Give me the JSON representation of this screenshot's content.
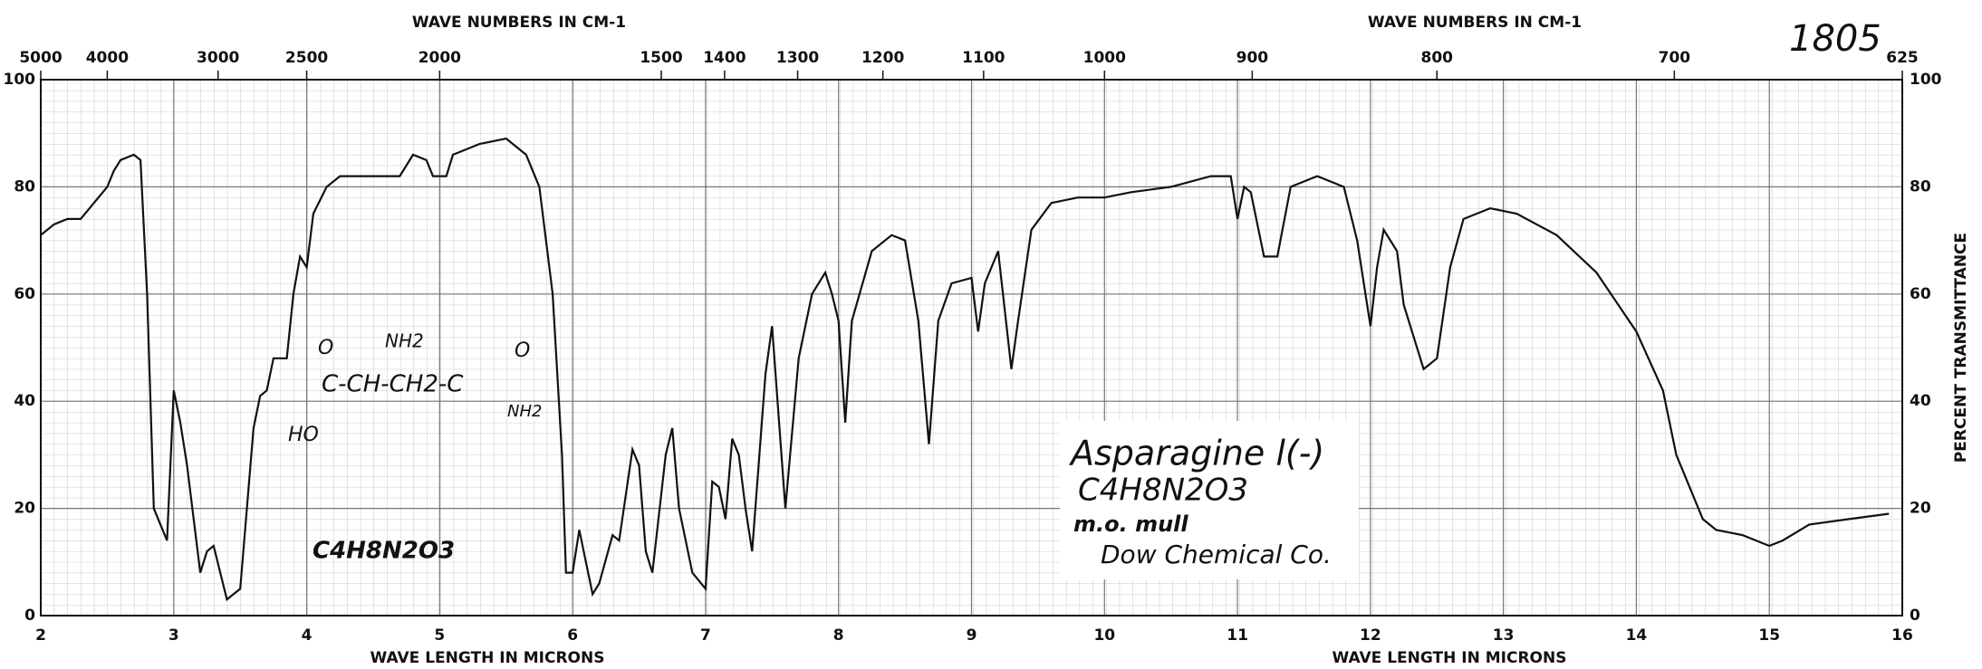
{
  "chart_data": {
    "type": "line",
    "x2label": "WAVE NUMBERS IN CM-1",
    "xlabel": "WAVE LENGTH IN MICRONS",
    "ylabel": "PERCENT TRANSMITTANCE",
    "annotations": [
      "1805",
      "Asparagine l(-)",
      "C4H8N2O3",
      "m.o. mull",
      "Dow Chemical Co."
    ],
    "structure_labels": [
      "O",
      "NH2",
      "C-CH-CH2-C",
      "HO",
      "O",
      "NH2",
      "C4H8N2O3"
    ],
    "xlim": [
      2,
      16
    ],
    "xticks": [
      2,
      3,
      4,
      5,
      6,
      7,
      8,
      9,
      10,
      11,
      12,
      13,
      14,
      15,
      16
    ],
    "x2scale": "reciprocal",
    "x2ticks": [
      5000,
      4000,
      3000,
      2500,
      2000,
      1500,
      1400,
      1300,
      1200,
      1100,
      1000,
      900,
      800,
      700,
      625
    ],
    "ylim": [
      0,
      100
    ],
    "yticks": [
      0,
      20,
      40,
      60,
      80,
      100
    ],
    "grid": true,
    "x": [
      2.0,
      2.1,
      2.2,
      2.3,
      2.4,
      2.5,
      2.55,
      2.6,
      2.7,
      2.75,
      2.8,
      2.85,
      2.9,
      2.95,
      3.0,
      3.05,
      3.1,
      3.2,
      3.25,
      3.3,
      3.4,
      3.5,
      3.6,
      3.65,
      3.7,
      3.75,
      3.85,
      3.9,
      3.95,
      4.0,
      4.05,
      4.15,
      4.25,
      4.4,
      4.5,
      4.6,
      4.7,
      4.8,
      4.9,
      4.95,
      5.05,
      5.1,
      5.3,
      5.5,
      5.65,
      5.75,
      5.85,
      5.92,
      5.95,
      6.0,
      6.05,
      6.1,
      6.15,
      6.2,
      6.3,
      6.35,
      6.45,
      6.5,
      6.55,
      6.6,
      6.7,
      6.75,
      6.8,
      6.9,
      7.0,
      7.05,
      7.1,
      7.15,
      7.2,
      7.25,
      7.3,
      7.35,
      7.45,
      7.5,
      7.6,
      7.7,
      7.8,
      7.9,
      7.95,
      8.0,
      8.05,
      8.1,
      8.25,
      8.4,
      8.5,
      8.6,
      8.68,
      8.75,
      8.85,
      9.0,
      9.05,
      9.1,
      9.2,
      9.3,
      9.35,
      9.45,
      9.6,
      9.8,
      10.0,
      10.2,
      10.5,
      10.8,
      10.95,
      11.0,
      11.05,
      11.1,
      11.2,
      11.3,
      11.4,
      11.6,
      11.8,
      11.9,
      12.0,
      12.05,
      12.1,
      12.2,
      12.25,
      12.4,
      12.5,
      12.6,
      12.7,
      12.9,
      13.1,
      13.4,
      13.7,
      14.0,
      14.2,
      14.3,
      14.5,
      14.6,
      14.8,
      15.0,
      15.1,
      15.3,
      15.6,
      15.9
    ],
    "series": [
      {
        "name": "Asparagine",
        "color": "#111111",
        "values": [
          71,
          73,
          74,
          74,
          77,
          80,
          83,
          85,
          86,
          85,
          60,
          20,
          17,
          14,
          42,
          36,
          28,
          8,
          12,
          13,
          3,
          5,
          35,
          41,
          42,
          48,
          48,
          60,
          67,
          65,
          75,
          80,
          82,
          82,
          82,
          82,
          82,
          86,
          85,
          82,
          82,
          86,
          88,
          89,
          86,
          80,
          60,
          30,
          8,
          8,
          16,
          10,
          4,
          6,
          15,
          14,
          31,
          28,
          12,
          8,
          30,
          35,
          20,
          8,
          5,
          25,
          24,
          18,
          33,
          30,
          20,
          12,
          45,
          54,
          20,
          48,
          60,
          64,
          60,
          55,
          36,
          55,
          68,
          71,
          70,
          55,
          32,
          55,
          62,
          63,
          53,
          62,
          68,
          46,
          55,
          72,
          77,
          78,
          78,
          79,
          80,
          82,
          82,
          74,
          80,
          79,
          67,
          67,
          80,
          82,
          80,
          70,
          54,
          65,
          72,
          68,
          58,
          46,
          48,
          65,
          74,
          76,
          75,
          71,
          64,
          53,
          42,
          30,
          18,
          16,
          15,
          13,
          14,
          17,
          18,
          19
        ]
      }
    ]
  }
}
